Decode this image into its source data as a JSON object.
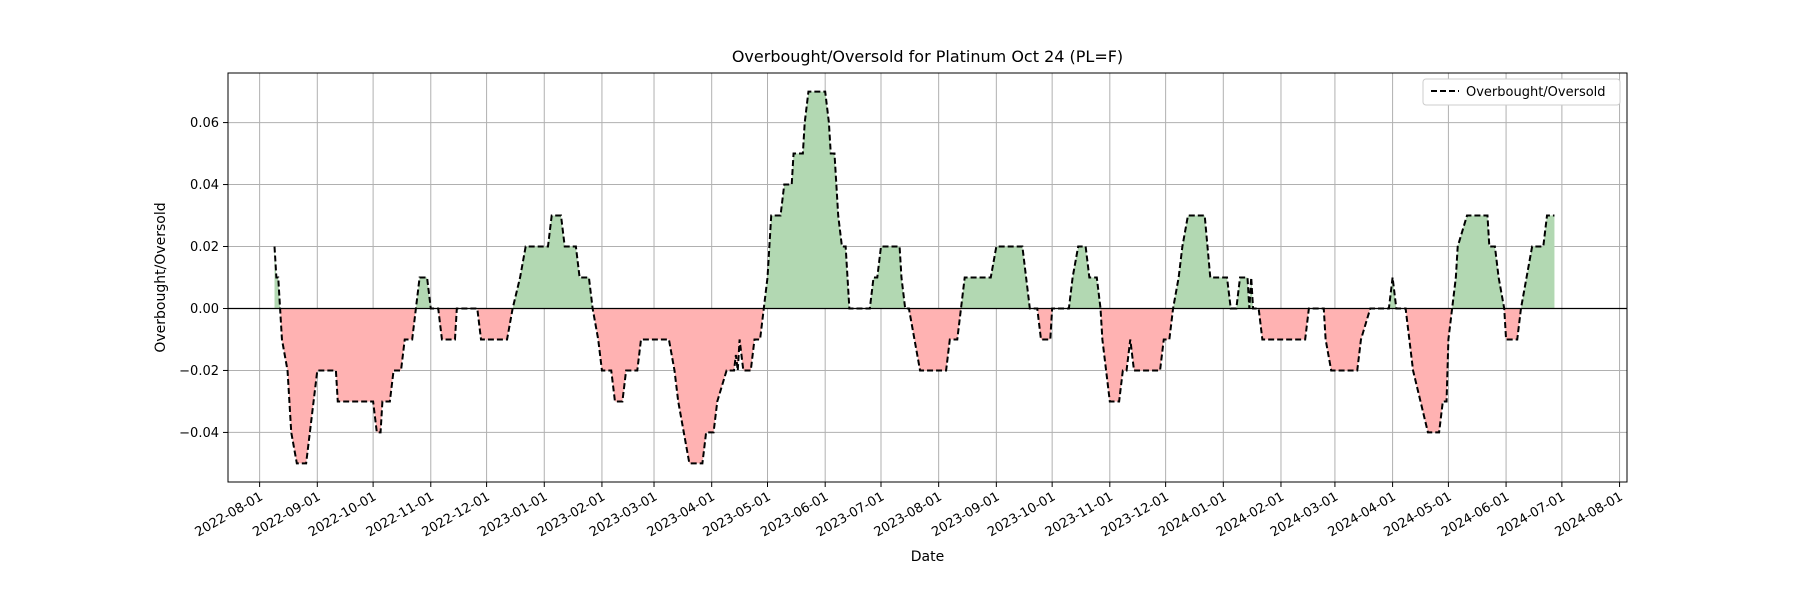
{
  "chart_data": {
    "type": "area",
    "title": "Overbought/Oversold for Platinum Oct 24 (PL=F)",
    "xlabel": "Date",
    "ylabel": "Overbought/Oversold",
    "legend": {
      "label": "Overbought/Oversold",
      "position": "top-right"
    },
    "xlim": [
      "2022-07-15",
      "2024-08-05"
    ],
    "ylim": [
      -0.056,
      0.076
    ],
    "grid": true,
    "zero_line": true,
    "x_ticks": [
      "2022-08-01",
      "2022-09-01",
      "2022-10-01",
      "2022-11-01",
      "2022-12-01",
      "2023-01-01",
      "2023-02-01",
      "2023-03-01",
      "2023-04-01",
      "2023-05-01",
      "2023-06-01",
      "2023-07-01",
      "2023-08-01",
      "2023-09-01",
      "2023-10-01",
      "2023-11-01",
      "2023-12-01",
      "2024-01-01",
      "2024-02-01",
      "2024-03-01",
      "2024-04-01",
      "2024-05-01",
      "2024-06-01",
      "2024-07-01",
      "2024-08-01"
    ],
    "y_ticks": [
      -0.04,
      -0.02,
      0.0,
      0.02,
      0.04,
      0.06
    ],
    "y_tick_labels": [
      "−0.04",
      "−0.02",
      "0.00",
      "0.02",
      "0.04",
      "0.06"
    ],
    "colors": {
      "positive_fill": "#b2d8b2",
      "negative_fill": "#ffb2b2",
      "line": "#000000",
      "grid": "#b0b0b0",
      "zero_line": "#000000"
    },
    "series": [
      {
        "name": "Overbought/Oversold",
        "points": [
          [
            "2022-08-09",
            0.02
          ],
          [
            "2022-08-10",
            0.01
          ],
          [
            "2022-08-11",
            0.01
          ],
          [
            "2022-08-12",
            0.0
          ],
          [
            "2022-08-13",
            -0.01
          ],
          [
            "2022-08-16",
            -0.02
          ],
          [
            "2022-08-18",
            -0.04
          ],
          [
            "2022-08-21",
            -0.05
          ],
          [
            "2022-08-26",
            -0.05
          ],
          [
            "2022-08-28",
            -0.04
          ],
          [
            "2022-08-30",
            -0.03
          ],
          [
            "2022-09-01",
            -0.02
          ],
          [
            "2022-09-11",
            -0.02
          ],
          [
            "2022-09-12",
            -0.03
          ],
          [
            "2022-10-01",
            -0.03
          ],
          [
            "2022-10-03",
            -0.04
          ],
          [
            "2022-10-05",
            -0.04
          ],
          [
            "2022-10-06",
            -0.03
          ],
          [
            "2022-10-10",
            -0.03
          ],
          [
            "2022-10-12",
            -0.02
          ],
          [
            "2022-10-16",
            -0.02
          ],
          [
            "2022-10-18",
            -0.01
          ],
          [
            "2022-10-22",
            -0.01
          ],
          [
            "2022-10-24",
            0.0
          ],
          [
            "2022-10-26",
            0.01
          ],
          [
            "2022-10-30",
            0.01
          ],
          [
            "2022-11-01",
            0.0
          ],
          [
            "2022-11-05",
            0.0
          ],
          [
            "2022-11-07",
            -0.01
          ],
          [
            "2022-11-14",
            -0.01
          ],
          [
            "2022-11-15",
            0.0
          ],
          [
            "2022-11-26",
            0.0
          ],
          [
            "2022-11-28",
            -0.01
          ],
          [
            "2022-12-12",
            -0.01
          ],
          [
            "2022-12-15",
            0.0
          ],
          [
            "2022-12-19",
            0.01
          ],
          [
            "2022-12-22",
            0.02
          ],
          [
            "2023-01-03",
            0.02
          ],
          [
            "2023-01-05",
            0.03
          ],
          [
            "2023-01-10",
            0.03
          ],
          [
            "2023-01-12",
            0.02
          ],
          [
            "2023-01-18",
            0.02
          ],
          [
            "2023-01-20",
            0.01
          ],
          [
            "2023-01-25",
            0.01
          ],
          [
            "2023-01-27",
            0.0
          ],
          [
            "2023-01-30",
            -0.01
          ],
          [
            "2023-02-01",
            -0.02
          ],
          [
            "2023-02-06",
            -0.02
          ],
          [
            "2023-02-08",
            -0.03
          ],
          [
            "2023-02-12",
            -0.03
          ],
          [
            "2023-02-14",
            -0.02
          ],
          [
            "2023-02-20",
            -0.02
          ],
          [
            "2023-02-22",
            -0.01
          ],
          [
            "2023-03-09",
            -0.01
          ],
          [
            "2023-03-12",
            -0.02
          ],
          [
            "2023-03-14",
            -0.03
          ],
          [
            "2023-03-17",
            -0.04
          ],
          [
            "2023-03-20",
            -0.05
          ],
          [
            "2023-03-27",
            -0.05
          ],
          [
            "2023-03-29",
            -0.04
          ],
          [
            "2023-04-02",
            -0.04
          ],
          [
            "2023-04-04",
            -0.03
          ],
          [
            "2023-04-09",
            -0.02
          ],
          [
            "2023-04-13",
            -0.02
          ],
          [
            "2023-04-14",
            -0.015
          ],
          [
            "2023-04-15",
            -0.02
          ],
          [
            "2023-04-16",
            -0.01
          ],
          [
            "2023-04-18",
            -0.02
          ],
          [
            "2023-04-22",
            -0.02
          ],
          [
            "2023-04-24",
            -0.01
          ],
          [
            "2023-04-27",
            -0.01
          ],
          [
            "2023-04-29",
            0.0
          ],
          [
            "2023-05-01",
            0.01
          ],
          [
            "2023-05-03",
            0.03
          ],
          [
            "2023-05-08",
            0.03
          ],
          [
            "2023-05-10",
            0.04
          ],
          [
            "2023-05-14",
            0.04
          ],
          [
            "2023-05-15",
            0.05
          ],
          [
            "2023-05-20",
            0.05
          ],
          [
            "2023-05-21",
            0.06
          ],
          [
            "2023-05-23",
            0.07
          ],
          [
            "2023-06-01",
            0.07
          ],
          [
            "2023-06-03",
            0.06
          ],
          [
            "2023-06-04",
            0.05
          ],
          [
            "2023-06-06",
            0.05
          ],
          [
            "2023-06-08",
            0.03
          ],
          [
            "2023-06-10",
            0.02
          ],
          [
            "2023-06-12",
            0.02
          ],
          [
            "2023-06-13",
            0.01
          ],
          [
            "2023-06-14",
            0.0
          ],
          [
            "2023-06-25",
            0.0
          ],
          [
            "2023-06-27",
            0.01
          ],
          [
            "2023-06-29",
            0.01
          ],
          [
            "2023-07-01",
            0.02
          ],
          [
            "2023-07-11",
            0.02
          ],
          [
            "2023-07-12",
            0.01
          ],
          [
            "2023-07-14",
            0.0
          ],
          [
            "2023-07-16",
            0.0
          ],
          [
            "2023-07-19",
            -0.01
          ],
          [
            "2023-07-22",
            -0.02
          ],
          [
            "2023-08-05",
            -0.02
          ],
          [
            "2023-08-07",
            -0.01
          ],
          [
            "2023-08-11",
            -0.01
          ],
          [
            "2023-08-13",
            0.0
          ],
          [
            "2023-08-15",
            0.01
          ],
          [
            "2023-08-29",
            0.01
          ],
          [
            "2023-09-01",
            0.02
          ],
          [
            "2023-09-15",
            0.02
          ],
          [
            "2023-09-17",
            0.01
          ],
          [
            "2023-09-19",
            0.0
          ],
          [
            "2023-09-23",
            0.0
          ],
          [
            "2023-09-25",
            -0.01
          ],
          [
            "2023-09-30",
            -0.01
          ],
          [
            "2023-10-01",
            0.0
          ],
          [
            "2023-10-10",
            0.0
          ],
          [
            "2023-10-12",
            0.01
          ],
          [
            "2023-10-15",
            0.02
          ],
          [
            "2023-10-19",
            0.02
          ],
          [
            "2023-10-21",
            0.01
          ],
          [
            "2023-10-25",
            0.01
          ],
          [
            "2023-10-27",
            0.0
          ],
          [
            "2023-10-28",
            -0.01
          ],
          [
            "2023-10-30",
            -0.02
          ],
          [
            "2023-11-01",
            -0.03
          ],
          [
            "2023-11-06",
            -0.03
          ],
          [
            "2023-11-08",
            -0.02
          ],
          [
            "2023-11-10",
            -0.02
          ],
          [
            "2023-11-12",
            -0.01
          ],
          [
            "2023-11-14",
            -0.02
          ],
          [
            "2023-11-28",
            -0.02
          ],
          [
            "2023-11-30",
            -0.01
          ],
          [
            "2023-12-03",
            -0.01
          ],
          [
            "2023-12-05",
            0.0
          ],
          [
            "2023-12-08",
            0.01
          ],
          [
            "2023-12-10",
            0.02
          ],
          [
            "2023-12-13",
            0.03
          ],
          [
            "2023-12-22",
            0.03
          ],
          [
            "2023-12-25",
            0.01
          ],
          [
            "2024-01-03",
            0.01
          ],
          [
            "2024-01-05",
            0.0
          ],
          [
            "2024-01-08",
            0.0
          ],
          [
            "2024-01-10",
            0.01
          ],
          [
            "2024-01-14",
            0.01
          ],
          [
            "2024-01-15",
            0.0
          ],
          [
            "2024-01-16",
            0.01
          ],
          [
            "2024-01-17",
            0.0
          ],
          [
            "2024-01-20",
            0.0
          ],
          [
            "2024-01-22",
            -0.01
          ],
          [
            "2024-02-14",
            -0.01
          ],
          [
            "2024-02-16",
            0.0
          ],
          [
            "2024-02-24",
            0.0
          ],
          [
            "2024-02-25",
            -0.01
          ],
          [
            "2024-02-28",
            -0.02
          ],
          [
            "2024-03-13",
            -0.02
          ],
          [
            "2024-03-15",
            -0.01
          ],
          [
            "2024-03-20",
            0.0
          ],
          [
            "2024-03-30",
            0.0
          ],
          [
            "2024-04-01",
            0.01
          ],
          [
            "2024-04-03",
            0.0
          ],
          [
            "2024-04-08",
            0.0
          ],
          [
            "2024-04-10",
            -0.01
          ],
          [
            "2024-04-12",
            -0.02
          ],
          [
            "2024-04-16",
            -0.03
          ],
          [
            "2024-04-20",
            -0.04
          ],
          [
            "2024-04-26",
            -0.04
          ],
          [
            "2024-04-28",
            -0.03
          ],
          [
            "2024-04-30",
            -0.03
          ],
          [
            "2024-05-01",
            -0.01
          ],
          [
            "2024-05-03",
            0.0
          ],
          [
            "2024-05-05",
            0.01
          ],
          [
            "2024-05-06",
            0.02
          ],
          [
            "2024-05-11",
            0.03
          ],
          [
            "2024-05-22",
            0.03
          ],
          [
            "2024-05-23",
            0.02
          ],
          [
            "2024-05-26",
            0.02
          ],
          [
            "2024-05-28",
            0.01
          ],
          [
            "2024-05-31",
            0.0
          ],
          [
            "2024-06-01",
            -0.01
          ],
          [
            "2024-06-07",
            -0.01
          ],
          [
            "2024-06-09",
            0.0
          ],
          [
            "2024-06-12",
            0.01
          ],
          [
            "2024-06-15",
            0.02
          ],
          [
            "2024-06-21",
            0.02
          ],
          [
            "2024-06-23",
            0.03
          ],
          [
            "2024-06-27",
            0.03
          ]
        ]
      }
    ]
  }
}
